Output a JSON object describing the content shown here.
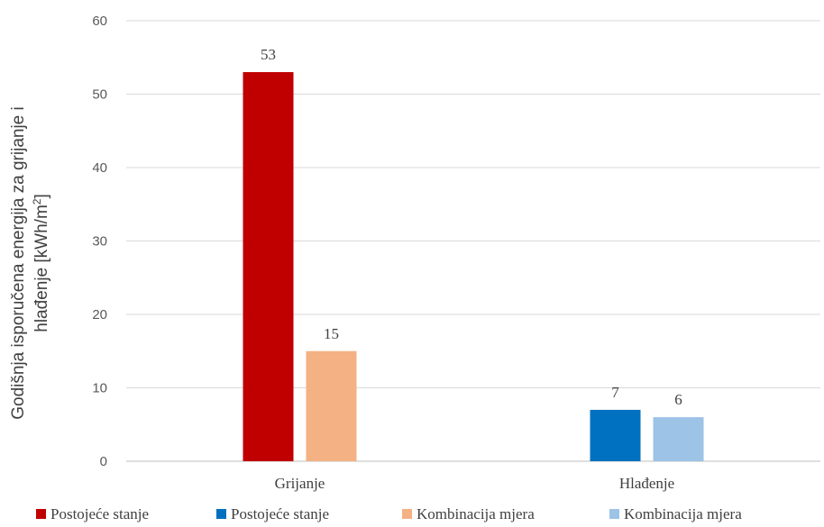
{
  "chart_data": {
    "type": "bar",
    "title": "",
    "ylabel_line1": "Godišnja isporučena energija za grijanje i",
    "ylabel_line2": "hlađenje [kWh/m",
    "ylabel_sup": "2",
    "ylabel_end": "]",
    "ylim": [
      0,
      60
    ],
    "yticks": [
      "0",
      "10",
      "20",
      "30",
      "40",
      "50",
      "60"
    ],
    "categories": [
      "Grijanje",
      "Hlađenje"
    ],
    "series": [
      {
        "name": "Postojeće stanje",
        "color": "#C00000",
        "values": [
          53,
          null
        ]
      },
      {
        "name": "Postojeće stanje",
        "color": "#0070C0",
        "values": [
          null,
          7
        ]
      },
      {
        "name": "Kombinacija mjera",
        "color": "#F4B183",
        "values": [
          15,
          null
        ]
      },
      {
        "name": "Kombinacija mjera",
        "color": "#9DC3E6",
        "values": [
          null,
          6
        ]
      }
    ],
    "grid": true,
    "legend": "bottom"
  }
}
